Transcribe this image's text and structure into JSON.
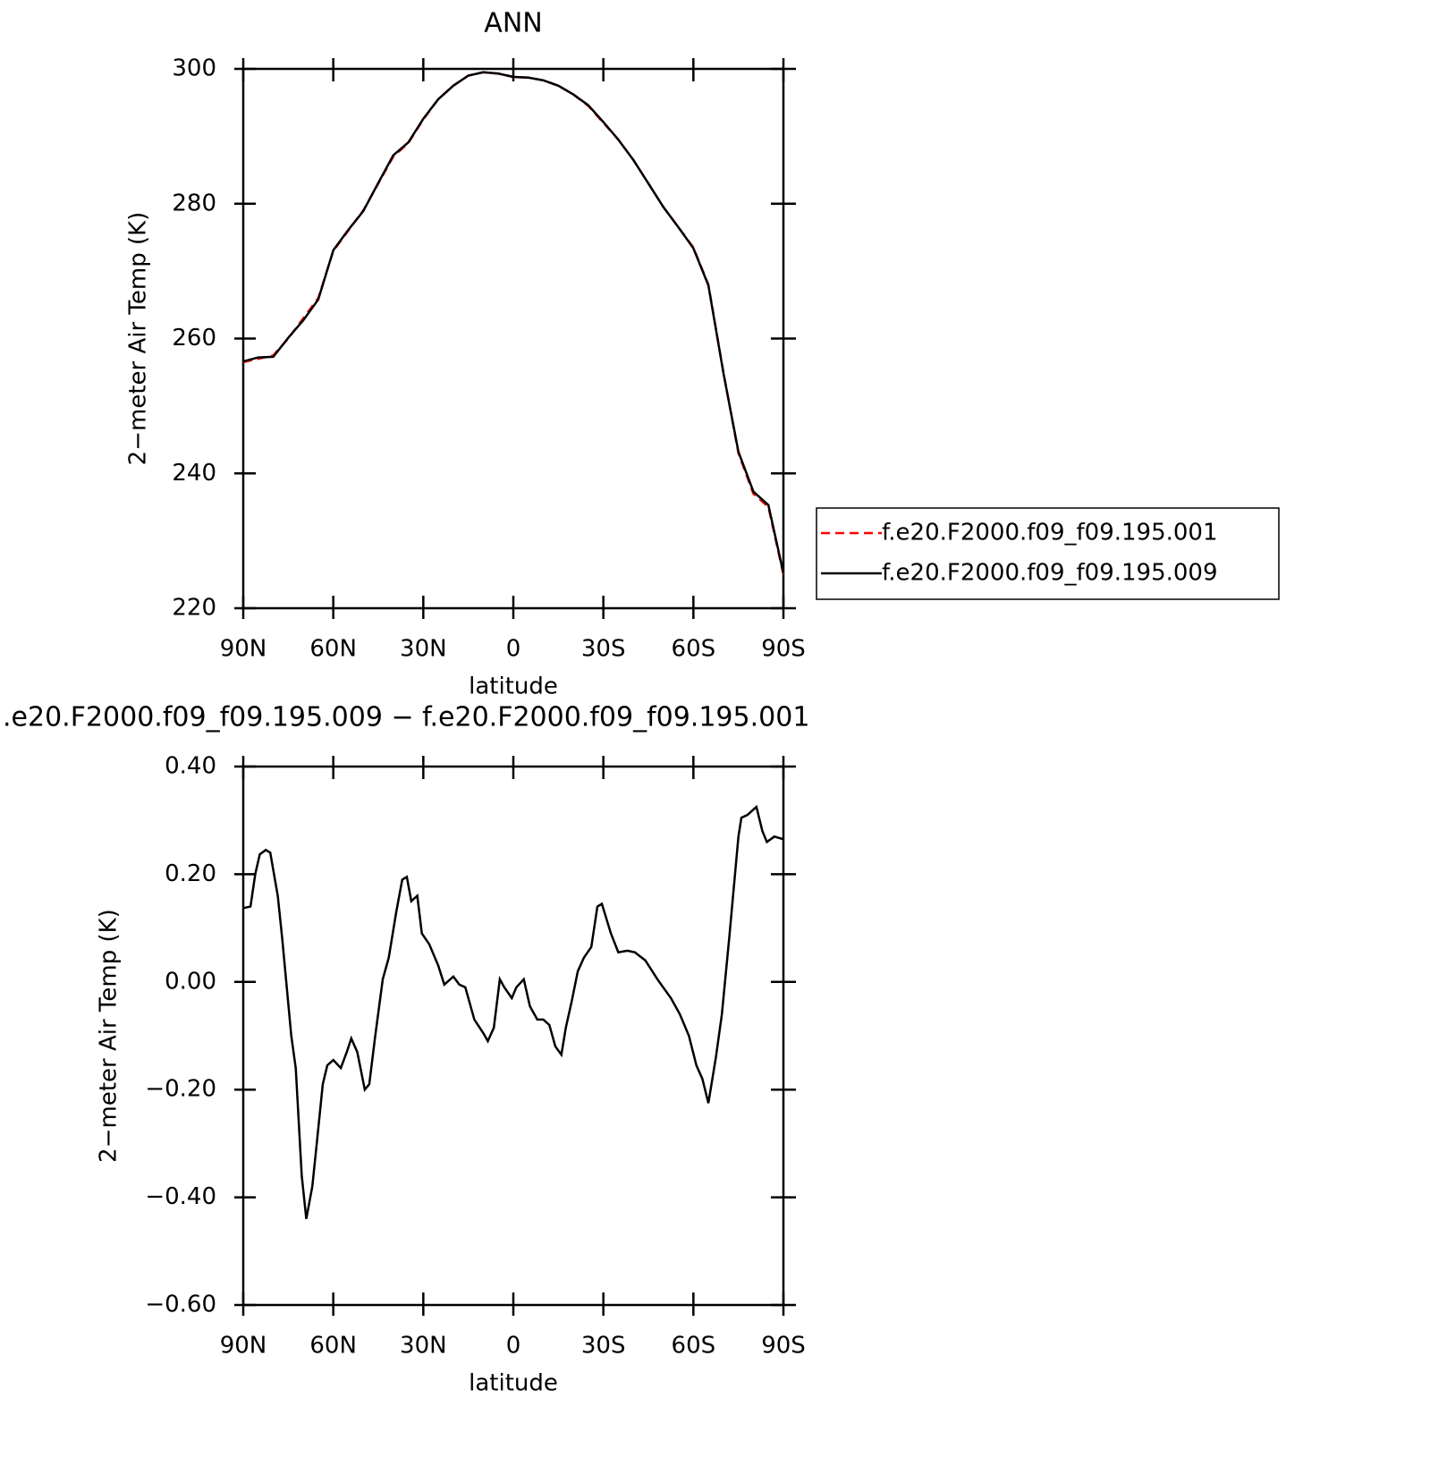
{
  "chart_data": [
    {
      "type": "line",
      "title": "ANN",
      "xlabel": "latitude",
      "ylabel": "2−meter Air Temp (K)",
      "x": [
        90,
        85,
        80,
        75,
        70,
        65,
        60,
        55,
        50,
        45,
        40,
        35,
        30,
        25,
        20,
        15,
        10,
        5,
        0,
        -5,
        -10,
        -15,
        -20,
        -25,
        -30,
        -35,
        -40,
        -45,
        -50,
        -55,
        -60,
        -65,
        -70,
        -75,
        -80,
        -85,
        -90
      ],
      "series": [
        {
          "name": "f.e20.F2000.f09_f09.195.001",
          "color": "#ff0000",
          "line_style": "dashed",
          "values": [
            256.5,
            257,
            257.5,
            260,
            263,
            266,
            273,
            276,
            279,
            283,
            287,
            289,
            292.5,
            295.5,
            297.5,
            299,
            299.5,
            299.3,
            298.8,
            298.7,
            298.3,
            297.5,
            296.2,
            294.5,
            292,
            289.5,
            286.5,
            283,
            279.5,
            276.5,
            273.5,
            268,
            255,
            243,
            237,
            235,
            225
          ]
        },
        {
          "name": "f.e20.F2000.f09_f09.195.009",
          "color": "#000000",
          "line_style": "solid",
          "values": [
            256.6,
            257.2,
            257.3,
            260.1,
            262.7,
            265.8,
            273.1,
            276.1,
            278.9,
            283.1,
            287.2,
            289.1,
            292.6,
            295.5,
            297.5,
            299,
            299.5,
            299.3,
            298.8,
            298.7,
            298.3,
            297.5,
            296.2,
            294.6,
            292.1,
            289.5,
            286.5,
            283,
            279.5,
            276.5,
            273.4,
            267.9,
            254.9,
            243.2,
            237.3,
            235.3,
            225.2
          ]
        }
      ],
      "xlim": [
        90,
        -90
      ],
      "xticks": [
        {
          "value": 90,
          "label": "90N"
        },
        {
          "value": 60,
          "label": "60N"
        },
        {
          "value": 30,
          "label": "30N"
        },
        0,
        {
          "value": -30,
          "label": "30S"
        },
        {
          "value": -60,
          "label": "60S"
        },
        {
          "value": -90,
          "label": "90S"
        }
      ],
      "ylim": [
        220,
        300
      ],
      "yticks": [
        220,
        240,
        260,
        280,
        300
      ],
      "legend": "right"
    },
    {
      "type": "line",
      "title": ".e20.F2000.f09_f09.195.009 − f.e20.F2000.f09_f09.195.001",
      "xlabel": "latitude",
      "ylabel": "2−meter Air Temp (K)",
      "x": [
        90,
        87.6,
        86,
        84.5,
        82.5,
        81,
        78.5,
        77,
        74,
        72.5,
        70.5,
        69,
        67,
        65.5,
        63.5,
        62,
        60,
        57.5,
        55.5,
        54,
        52,
        49.5,
        48,
        46,
        43.5,
        41.5,
        39,
        37,
        35.5,
        34,
        32,
        30.5,
        28,
        25,
        23,
        20,
        18,
        16,
        13,
        10,
        8.5,
        6.5,
        4.5,
        3,
        0.5,
        -1,
        -3.5,
        -5.5,
        -8,
        -10,
        -12,
        -14,
        -16,
        -17.5,
        -19.5,
        -21.5,
        -23.5,
        -26,
        -28,
        -29.5,
        -32.5,
        -35,
        -38,
        -40.5,
        -44,
        -48,
        -52.5,
        -55.5,
        -58.5,
        -61,
        -63,
        -65,
        -67.5,
        -69.5,
        -72,
        -75,
        -76,
        -78,
        -81,
        -83,
        -84.5,
        -87,
        -90
      ],
      "values": [
        0.137,
        0.14,
        0.2,
        0.237,
        0.245,
        0.24,
        0.16,
        0.08,
        -0.1,
        -0.16,
        -0.36,
        -0.44,
        -0.38,
        -0.3,
        -0.19,
        -0.155,
        -0.145,
        -0.16,
        -0.13,
        -0.105,
        -0.13,
        -0.2,
        -0.19,
        -0.1,
        0.005,
        0.045,
        0.13,
        0.19,
        0.195,
        0.15,
        0.16,
        0.09,
        0.07,
        0.03,
        -0.005,
        0.01,
        -0.005,
        -0.01,
        -0.07,
        -0.095,
        -0.11,
        -0.085,
        0.005,
        -0.01,
        -0.03,
        -0.01,
        0.005,
        -0.045,
        -0.07,
        -0.07,
        -0.08,
        -0.12,
        -0.135,
        -0.085,
        -0.035,
        0.02,
        0.045,
        0.065,
        0.14,
        0.145,
        0.09,
        0.055,
        0.058,
        0.055,
        0.04,
        0.005,
        -0.03,
        -0.06,
        -0.1,
        -0.155,
        -0.18,
        -0.225,
        -0.14,
        -0.06,
        0.085,
        0.27,
        0.305,
        0.31,
        0.325,
        0.28,
        0.26,
        0.27,
        0.265
      ],
      "color": "#000000",
      "line_style": "solid",
      "xlim": [
        90,
        -90
      ],
      "xticks": [
        {
          "value": 90,
          "label": "90N"
        },
        {
          "value": 60,
          "label": "60N"
        },
        {
          "value": 30,
          "label": "30N"
        },
        0,
        {
          "value": -30,
          "label": "30S"
        },
        {
          "value": -60,
          "label": "60S"
        },
        {
          "value": -90,
          "label": "90S"
        }
      ],
      "ylim": [
        -0.6,
        0.4
      ],
      "yticks": [
        {
          "value": -0.6,
          "label": "−0.60"
        },
        {
          "value": -0.4,
          "label": "−0.40"
        },
        {
          "value": -0.2,
          "label": "−0.20"
        },
        {
          "value": 0,
          "label": "0.00"
        },
        {
          "value": 0.2,
          "label": "0.20"
        },
        {
          "value": 0.4,
          "label": "0.40"
        }
      ]
    }
  ]
}
